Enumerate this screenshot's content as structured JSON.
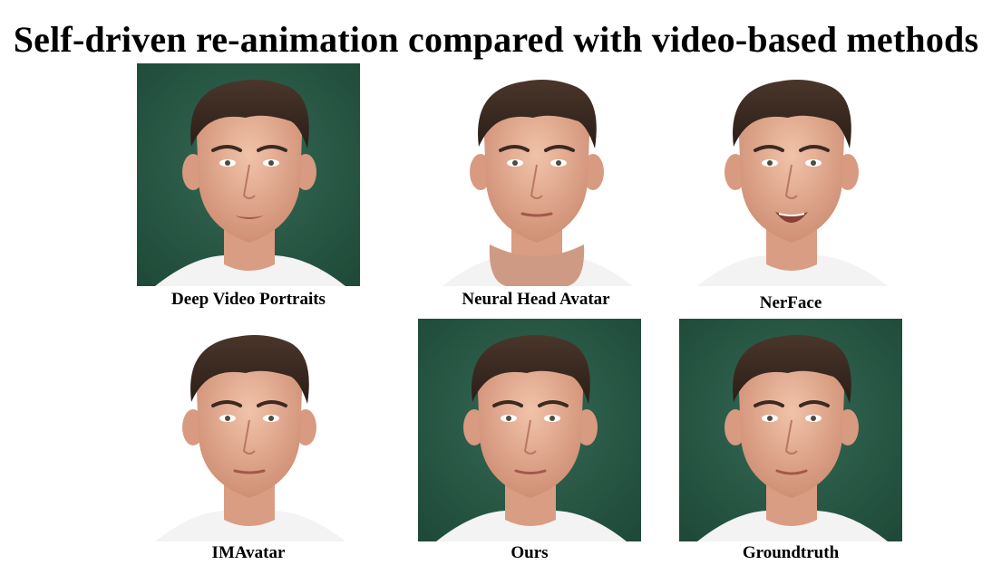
{
  "title": "Self-driven re-animation compared with video-based methods",
  "colors": {
    "background_green": "#2d5e4a",
    "skin": "#e2a98d",
    "hair": "#3a2a21",
    "shirt": "#f3f3f3"
  },
  "panels": [
    {
      "id": "dvp",
      "label": "Deep Video Portraits",
      "background": "green",
      "mouth": "open-slight"
    },
    {
      "id": "nha",
      "label": "Neural Head Avatar",
      "background": "white",
      "mouth": "closed",
      "neck": "distorted"
    },
    {
      "id": "nerf",
      "label": "NerFace",
      "background": "white",
      "mouth": "open-smile"
    },
    {
      "id": "ima",
      "label": "IMAvatar",
      "background": "white",
      "mouth": "closed"
    },
    {
      "id": "ours",
      "label": "Ours",
      "background": "green",
      "mouth": "closed"
    },
    {
      "id": "gt",
      "label": "Groundtruth",
      "background": "green",
      "mouth": "closed"
    }
  ]
}
